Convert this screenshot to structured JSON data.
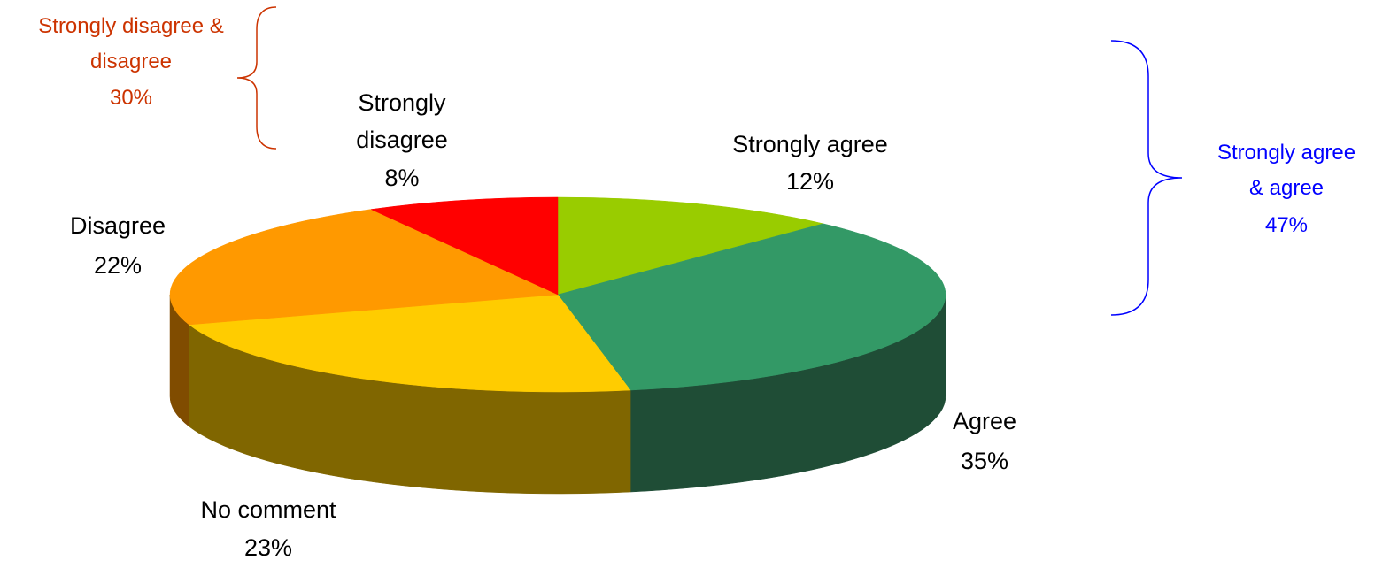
{
  "chart_data": {
    "type": "pie",
    "style": "3d-tilted",
    "slices": [
      {
        "label": "Strongly agree",
        "value": 12,
        "value_label": "12%",
        "color": "#99CC00",
        "side_color": "#5C7A00"
      },
      {
        "label": "Agree",
        "value": 35,
        "value_label": "35%",
        "color": "#339966",
        "side_color": "#1F4D36"
      },
      {
        "label": "No comment",
        "value": 23,
        "value_label": "23%",
        "color": "#FFCC00",
        "side_color": "#806600"
      },
      {
        "label": "Disagree",
        "value": 22,
        "value_label": "22%",
        "color": "#FF9900",
        "side_color": "#804C00"
      },
      {
        "label": "Strongly disagree",
        "value": 8,
        "value_label": "8%",
        "color": "#FF0000",
        "side_color": "#800000"
      }
    ],
    "groups": [
      {
        "lines": [
          "Strongly disagree &",
          "disagree",
          "30%"
        ],
        "color": "#CC3300"
      },
      {
        "lines": [
          "Strongly agree",
          "& agree",
          "47%"
        ],
        "color": "#0000FF"
      }
    ]
  }
}
